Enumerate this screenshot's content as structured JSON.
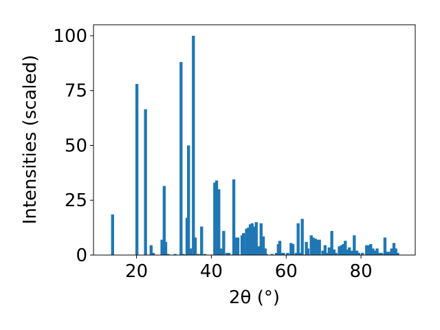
{
  "chart_data": {
    "type": "bar",
    "xlabel": "2θ (°)",
    "ylabel": "Intensities (scaled)",
    "xlim": [
      8.5,
      94.5
    ],
    "ylim": [
      0,
      105
    ],
    "bar_color": "#1f77b4",
    "x_ticks": [
      20,
      40,
      60,
      80
    ],
    "y_ticks": [
      0,
      25,
      50,
      75,
      100
    ],
    "grid": false,
    "x": [
      13.6,
      20.1,
      22.4,
      23.9,
      24.5,
      26.8,
      27.4,
      27.8,
      28.4,
      30.3,
      31.9,
      32.5,
      33.5,
      33.9,
      34.4,
      35.2,
      35.7,
      36.5,
      37.4,
      38.3,
      40.9,
      41.4,
      42.0,
      42.6,
      43.3,
      44.2,
      44.7,
      46.0,
      46.6,
      47.1,
      48.2,
      48.6,
      49.4,
      49.9,
      50.4,
      50.9,
      51.5,
      52.0,
      52.6,
      53.3,
      53.9,
      54.4,
      54.7,
      56.2,
      57.4,
      57.9,
      58.3,
      58.8,
      59.3,
      60.4,
      61.3,
      61.8,
      62.7,
      63.2,
      63.7,
      64.3,
      65.4,
      65.8,
      66.7,
      67.2,
      67.8,
      68.3,
      68.9,
      69.8,
      70.4,
      71.0,
      71.5,
      72.2,
      72.8,
      73.3,
      74.2,
      74.8,
      75.3,
      75.8,
      76.4,
      76.9,
      77.5,
      78.2,
      78.9,
      79.4,
      80.4,
      81.5,
      82.1,
      82.6,
      83.2,
      83.7,
      84.3,
      85.0,
      85.5,
      86.4,
      86.9,
      87.6,
      88.2,
      88.8,
      89.3,
      89.8
    ],
    "values": [
      18.5,
      78,
      66.5,
      4.5,
      1,
      7,
      31.5,
      6,
      0.5,
      0.5,
      88,
      0.5,
      17,
      50,
      3,
      100,
      8,
      0.5,
      13,
      0.5,
      33,
      34,
      30,
      3,
      11,
      1,
      1,
      34.5,
      8,
      8,
      9,
      10,
      12,
      12.5,
      14,
      14.5,
      13,
      15,
      4,
      14.5,
      8.5,
      3,
      0.5,
      0.5,
      1,
      5,
      6.5,
      1,
      1,
      1,
      5.5,
      5,
      1,
      14.5,
      1,
      16.5,
      6,
      3,
      9,
      8,
      7.5,
      7,
      7,
      2,
      4.5,
      1,
      3.5,
      11,
      2.5,
      1,
      4,
      4.5,
      5,
      6.5,
      2.5,
      3.5,
      2,
      9,
      2,
      1,
      1,
      4.5,
      4.5,
      5,
      3,
      2,
      3,
      1,
      1,
      8,
      1.5,
      1.5,
      3,
      5.5,
      3,
      1
    ]
  }
}
